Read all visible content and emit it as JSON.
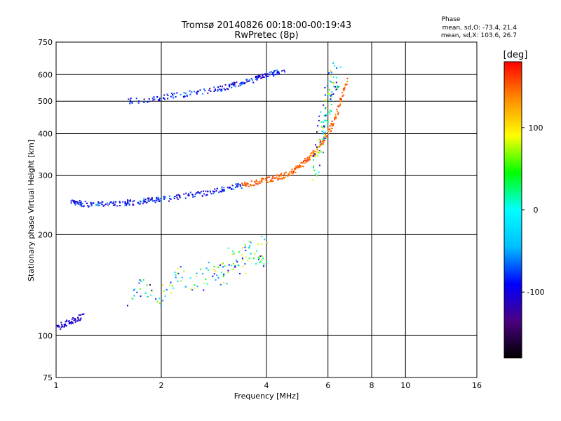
{
  "chart_data": {
    "type": "scatter",
    "title": "Tromsø 20140826 00:18:00-00:19:43",
    "subtitle": "RwPretec (8p)",
    "xlabel": "Frequency [MHz]",
    "ylabel": "Stationary phase Virtual Height [km]",
    "x_scale": "log",
    "y_scale": "log",
    "xlim": [
      1,
      16
    ],
    "ylim": [
      75,
      750
    ],
    "x_ticks": [
      1,
      2,
      4,
      6,
      8,
      10,
      16
    ],
    "x_gridlines": [
      2,
      4,
      6,
      8,
      10
    ],
    "y_ticks": [
      75,
      100,
      200,
      300,
      400,
      500,
      600,
      750
    ],
    "y_gridlines": [
      100,
      200,
      300,
      400,
      500,
      600
    ],
    "grid": true,
    "color_by": "phase",
    "phase_stats": {
      "heading": "Phase",
      "line_o": "mean, sd,O: -73.4, 21.4",
      "line_x": "mean, sd,X: 103.6, 26.7"
    },
    "colorbar": {
      "unit": "[deg]",
      "min": -180,
      "max": 180,
      "ticks": [
        100,
        0,
        -100
      ],
      "colors": [
        "#000000",
        "#4b0082",
        "#0000ff",
        "#00bfff",
        "#00ffff",
        "#00ff00",
        "#ffff00",
        "#ff8c00",
        "#ff0000"
      ]
    },
    "traces": [
      {
        "description_color": "blue-cyan",
        "points": [
          [
            1.1,
            250
          ],
          [
            1.15,
            248
          ],
          [
            1.2,
            247
          ],
          [
            1.3,
            246
          ],
          [
            1.4,
            247
          ],
          [
            1.5,
            248
          ],
          [
            1.6,
            249
          ],
          [
            1.7,
            250
          ],
          [
            1.8,
            252
          ],
          [
            1.9,
            253
          ],
          [
            2.0,
            255
          ],
          [
            2.2,
            258
          ],
          [
            2.4,
            262
          ],
          [
            2.6,
            265
          ],
          [
            2.8,
            269
          ],
          [
            3.0,
            273
          ],
          [
            3.2,
            276
          ],
          [
            3.4,
            280
          ]
        ]
      },
      {
        "description_color": "orange-red",
        "points": [
          [
            3.4,
            280
          ],
          [
            3.6,
            284
          ],
          [
            3.8,
            288
          ],
          [
            4.0,
            291
          ],
          [
            4.2,
            294
          ],
          [
            4.4,
            298
          ],
          [
            4.6,
            303
          ],
          [
            4.8,
            310
          ],
          [
            5.0,
            320
          ],
          [
            5.2,
            332
          ],
          [
            5.4,
            345
          ],
          [
            5.6,
            360
          ],
          [
            5.8,
            380
          ],
          [
            6.0,
            400
          ],
          [
            6.2,
            430
          ],
          [
            6.4,
            470
          ],
          [
            6.6,
            520
          ],
          [
            6.8,
            580
          ]
        ]
      },
      {
        "description_color": "blue-cyan",
        "points": [
          [
            1.6,
            500
          ],
          [
            1.8,
            505
          ],
          [
            2.0,
            512
          ],
          [
            2.2,
            520
          ],
          [
            2.5,
            530
          ],
          [
            2.8,
            540
          ],
          [
            3.0,
            548
          ],
          [
            3.2,
            556
          ],
          [
            3.4,
            565
          ],
          [
            3.6,
            575
          ],
          [
            3.8,
            585
          ],
          [
            4.0,
            595
          ],
          [
            4.2,
            605
          ],
          [
            4.5,
            615
          ]
        ]
      },
      {
        "description_color": "blue-cyan-yellow",
        "points": [
          [
            5.5,
            300
          ],
          [
            5.6,
            340
          ],
          [
            5.7,
            380
          ],
          [
            5.8,
            420
          ],
          [
            5.9,
            460
          ],
          [
            6.0,
            500
          ],
          [
            6.1,
            540
          ],
          [
            6.2,
            580
          ],
          [
            6.4,
            620
          ]
        ]
      },
      {
        "description_color": "blue-cyan-yellow",
        "points": [
          [
            1.6,
            130
          ],
          [
            1.8,
            140
          ],
          [
            2.0,
            130
          ],
          [
            2.2,
            150
          ],
          [
            2.5,
            140
          ],
          [
            2.8,
            160
          ],
          [
            3.0,
            150
          ],
          [
            3.2,
            170
          ],
          [
            3.4,
            160
          ],
          [
            3.6,
            180
          ],
          [
            3.8,
            170
          ],
          [
            4.0,
            190
          ]
        ]
      },
      {
        "description_color": "blue",
        "points": [
          [
            1.0,
            105
          ],
          [
            1.05,
            108
          ],
          [
            1.1,
            110
          ],
          [
            1.15,
            112
          ],
          [
            1.2,
            115
          ]
        ]
      }
    ]
  }
}
